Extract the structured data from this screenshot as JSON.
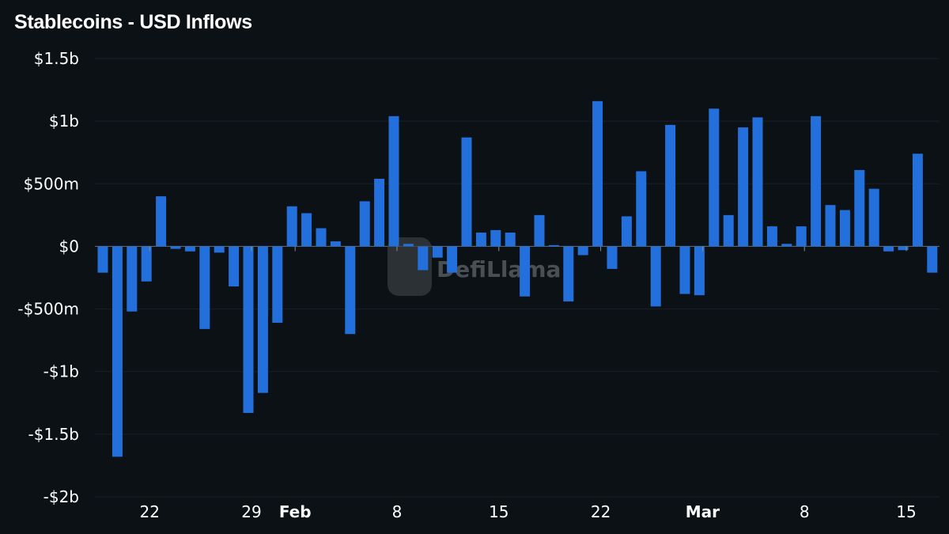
{
  "chart_data": {
    "type": "bar",
    "title": "Stablecoins - USD Inflows",
    "xlabel": "",
    "ylabel": "",
    "unit": "USD millions",
    "ylim": [
      -2000,
      1500
    ],
    "grid": true,
    "bar_color": "#2370dc",
    "watermark": "DefiLlama",
    "y_ticks": [
      {
        "value": 1500,
        "label": "$1.5b"
      },
      {
        "value": 1000,
        "label": "$1b"
      },
      {
        "value": 500,
        "label": "$500m"
      },
      {
        "value": 0,
        "label": "$0"
      },
      {
        "value": -500,
        "label": "-$500m"
      },
      {
        "value": -1000,
        "label": "-$1b"
      },
      {
        "value": -1500,
        "label": "-$1.5b"
      },
      {
        "value": -2000,
        "label": "-$2b"
      }
    ],
    "x_ticks": [
      {
        "date": "Jan 22",
        "label": "22",
        "bold": false
      },
      {
        "date": "Jan 29",
        "label": "29",
        "bold": false
      },
      {
        "date": "Feb 1",
        "label": "Feb",
        "bold": true
      },
      {
        "date": "Feb 8",
        "label": "8",
        "bold": false
      },
      {
        "date": "Feb 15",
        "label": "15",
        "bold": false
      },
      {
        "date": "Feb 22",
        "label": "22",
        "bold": false
      },
      {
        "date": "Mar 1",
        "label": "Mar",
        "bold": true
      },
      {
        "date": "Mar 8",
        "label": "8",
        "bold": false
      },
      {
        "date": "Mar 15",
        "label": "15",
        "bold": false
      }
    ],
    "categories": [
      "Jan 19",
      "Jan 20",
      "Jan 21",
      "Jan 22",
      "Jan 23",
      "Jan 24",
      "Jan 25",
      "Jan 26",
      "Jan 27",
      "Jan 28",
      "Jan 29",
      "Jan 30",
      "Jan 31",
      "Feb 1",
      "Feb 2",
      "Feb 3",
      "Feb 4",
      "Feb 5",
      "Feb 6",
      "Feb 7",
      "Feb 8",
      "Feb 9",
      "Feb 10",
      "Feb 11",
      "Feb 12",
      "Feb 13",
      "Feb 14",
      "Feb 15",
      "Feb 16",
      "Feb 17",
      "Feb 18",
      "Feb 19",
      "Feb 20",
      "Feb 21",
      "Feb 22",
      "Feb 23",
      "Feb 24",
      "Feb 25",
      "Feb 26",
      "Feb 27",
      "Feb 28",
      "Mar 1",
      "Mar 2",
      "Mar 3",
      "Mar 4",
      "Mar 5",
      "Mar 6",
      "Mar 7",
      "Mar 8",
      "Mar 9",
      "Mar 10",
      "Mar 11",
      "Mar 12",
      "Mar 13",
      "Mar 14",
      "Mar 15",
      "Mar 16",
      "Mar 17"
    ],
    "values": [
      -210,
      -1680,
      -520,
      -280,
      400,
      -20,
      -40,
      -660,
      -50,
      -320,
      -1330,
      -1170,
      -610,
      320,
      265,
      145,
      40,
      -700,
      360,
      540,
      1040,
      20,
      -190,
      -90,
      -210,
      870,
      110,
      130,
      110,
      -400,
      250,
      10,
      -440,
      -70,
      1160,
      -180,
      240,
      600,
      -480,
      970,
      -380,
      -390,
      1100,
      250,
      950,
      1030,
      160,
      20,
      160,
      1040,
      330,
      290,
      610,
      460,
      -40,
      -30,
      740,
      -210
    ]
  }
}
